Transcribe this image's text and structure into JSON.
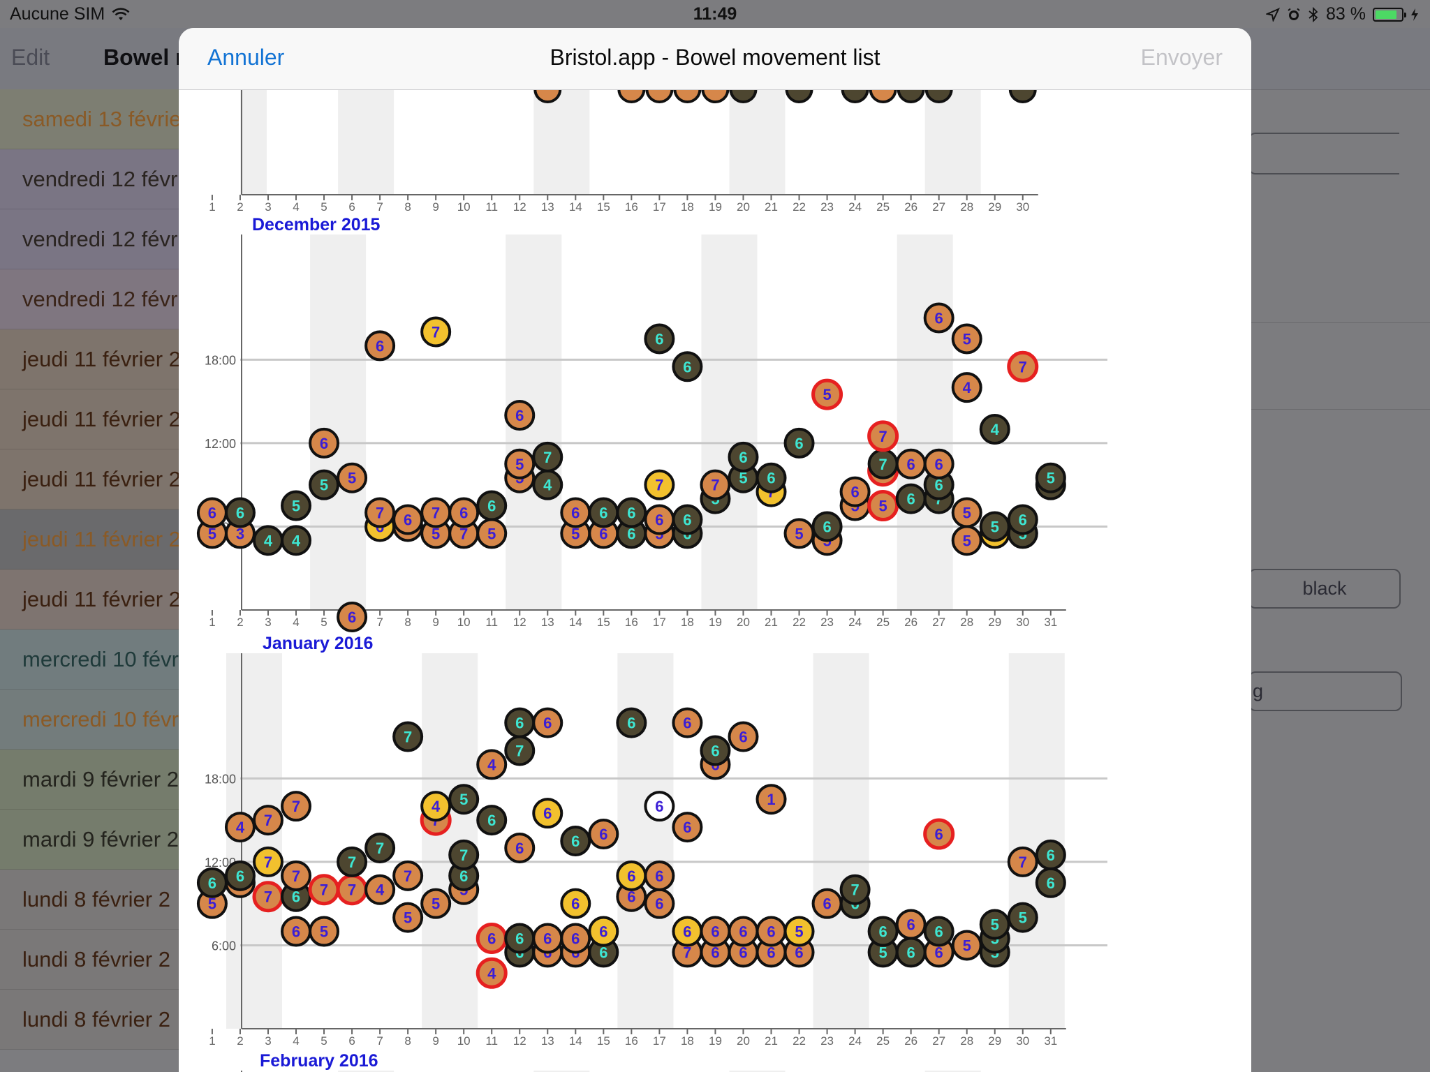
{
  "status_bar": {
    "carrier": "Aucune SIM",
    "time": "11:49",
    "battery": "83 %",
    "battery_level": 0.83
  },
  "background": {
    "nav": {
      "edit_label": "Edit",
      "title": "Bowel r"
    },
    "list": [
      {
        "label": "samedi 13 févrie",
        "color": "#8a5a26",
        "bg": "#7d7e72"
      },
      {
        "label": "vendredi 12 févr",
        "color": "#2a2420",
        "bg": "#7a7584"
      },
      {
        "label": "vendredi 12 févr",
        "color": "#2a2420",
        "bg": "#7a7584"
      },
      {
        "label": "vendredi 12 févr",
        "color": "#3a2418",
        "bg": "#7f7680"
      },
      {
        "label": "jeudi 11 février 2",
        "color": "#3a2010",
        "bg": "#7e746c"
      },
      {
        "label": "jeudi 11 février 2",
        "color": "#3a2010",
        "bg": "#7e746c"
      },
      {
        "label": "jeudi 11 février 2",
        "color": "#3a2010",
        "bg": "#7e746c"
      },
      {
        "label": "jeudi 11 février 2",
        "color": "#8a5a26",
        "bg": "#6a6a6c"
      },
      {
        "label": "jeudi 11 février 2",
        "color": "#3a2010",
        "bg": "#7e7470"
      },
      {
        "label": "mercredi 10 févri",
        "color": "#1f3a3a",
        "bg": "#717c7e"
      },
      {
        "label": "mercredi 10 févri",
        "color": "#8a5a26",
        "bg": "#737c7c"
      },
      {
        "label": "mardi 9 février 2",
        "color": "#24241e",
        "bg": "#757c6c"
      },
      {
        "label": "mardi 9 février 2",
        "color": "#24241e",
        "bg": "#757c6c"
      },
      {
        "label": "lundi 8 février 2",
        "color": "#3a2010",
        "bg": "#7a7878"
      },
      {
        "label": "lundi 8 février 2",
        "color": "#3a2010",
        "bg": "#7a7878"
      },
      {
        "label": "lundi 8 février 2",
        "color": "#3a2010",
        "bg": "#7a7878"
      }
    ],
    "fields": [
      {
        "label": "black"
      },
      {
        "label": "g"
      }
    ]
  },
  "modal": {
    "cancel_label": "Annuler",
    "title": "Bristol.app - Bowel movement list",
    "send_label": "Envoyer",
    "accent_color": "#1273d4"
  },
  "chart_data": [
    {
      "type": "scatter",
      "title": "December 2015",
      "days": 31,
      "y_tick_labels": [
        "6:00",
        "12:00",
        "18:00"
      ],
      "weekend_bands": [
        [
          5,
          6
        ],
        [
          12,
          13
        ],
        [
          19,
          20
        ],
        [
          26,
          27
        ]
      ],
      "points": [
        [
          1,
          5.5,
          "5",
          "or"
        ],
        [
          1,
          7.0,
          "6",
          "or"
        ],
        [
          2,
          5.5,
          "3",
          "or"
        ],
        [
          2,
          7.0,
          "6",
          "gr"
        ],
        [
          3,
          5.0,
          "4",
          "gr"
        ],
        [
          4,
          5.0,
          "4",
          "gr"
        ],
        [
          4,
          7.5,
          "5",
          "gr"
        ],
        [
          5,
          9.0,
          "5",
          "gr"
        ],
        [
          5,
          12.0,
          "6",
          "or"
        ],
        [
          6,
          9.5,
          "5",
          "or"
        ],
        [
          6,
          -0.5,
          "6",
          "or"
        ],
        [
          7,
          6.0,
          "6",
          "ye"
        ],
        [
          7,
          7.0,
          "7",
          "or"
        ],
        [
          7,
          19.0,
          "6",
          "or"
        ],
        [
          8,
          6.0,
          "6",
          "or"
        ],
        [
          8,
          6.5,
          "6",
          "or"
        ],
        [
          9,
          5.5,
          "5",
          "or"
        ],
        [
          9,
          7.0,
          "7",
          "or"
        ],
        [
          9,
          20.0,
          "7",
          "ye"
        ],
        [
          10,
          5.5,
          "7",
          "or"
        ],
        [
          10,
          7.0,
          "6",
          "or"
        ],
        [
          11,
          5.5,
          "5",
          "or"
        ],
        [
          11,
          7.5,
          "6",
          "gr"
        ],
        [
          12,
          9.5,
          "5",
          "or"
        ],
        [
          12,
          10.5,
          "5",
          "or"
        ],
        [
          12,
          14.0,
          "6",
          "or"
        ],
        [
          13,
          9.0,
          "4",
          "gr"
        ],
        [
          13,
          11.0,
          "7",
          "gr"
        ],
        [
          14,
          5.5,
          "5",
          "or"
        ],
        [
          14,
          7.0,
          "6",
          "or"
        ],
        [
          15,
          5.5,
          "6",
          "or"
        ],
        [
          15,
          7.0,
          "6",
          "gr"
        ],
        [
          16,
          5.5,
          "6",
          "gr"
        ],
        [
          16,
          7.0,
          "6",
          "gr"
        ],
        [
          17,
          5.5,
          "5",
          "or"
        ],
        [
          17,
          6.5,
          "6",
          "or"
        ],
        [
          17,
          9.0,
          "7",
          "ye"
        ],
        [
          17,
          19.5,
          "6",
          "gr"
        ],
        [
          18,
          5.5,
          "6",
          "gr"
        ],
        [
          18,
          6.5,
          "6",
          "gr"
        ],
        [
          18,
          17.5,
          "6",
          "gr"
        ],
        [
          19,
          8.0,
          "5",
          "gr"
        ],
        [
          19,
          9.0,
          "7",
          "or"
        ],
        [
          20,
          9.5,
          "5",
          "gr"
        ],
        [
          20,
          11.0,
          "6",
          "gr"
        ],
        [
          21,
          8.5,
          "7",
          "ye"
        ],
        [
          21,
          9.5,
          "6",
          "gr"
        ],
        [
          22,
          5.5,
          "5",
          "or"
        ],
        [
          22,
          12.0,
          "6",
          "gr"
        ],
        [
          23,
          5.0,
          "5",
          "or"
        ],
        [
          23,
          6.0,
          "6",
          "gr"
        ],
        [
          23,
          15.5,
          "5",
          "rd"
        ],
        [
          24,
          7.5,
          "5",
          "or"
        ],
        [
          24,
          8.5,
          "6",
          "or"
        ],
        [
          25,
          7.5,
          "5",
          "rd"
        ],
        [
          25,
          10.0,
          "7",
          "rd"
        ],
        [
          25,
          10.5,
          "7",
          "gr"
        ],
        [
          25,
          12.5,
          "7",
          "rd"
        ],
        [
          26,
          8.0,
          "6",
          "gr"
        ],
        [
          26,
          10.5,
          "6",
          "or"
        ],
        [
          27,
          8.0,
          "7",
          "gr"
        ],
        [
          27,
          9.0,
          "6",
          "gr"
        ],
        [
          27,
          10.5,
          "6",
          "or"
        ],
        [
          27,
          21.0,
          "6",
          "or"
        ],
        [
          28,
          5.0,
          "5",
          "or"
        ],
        [
          28,
          7.0,
          "5",
          "or"
        ],
        [
          28,
          16.0,
          "4",
          "or"
        ],
        [
          28,
          19.5,
          "5",
          "or"
        ],
        [
          29,
          5.5,
          "4",
          "ye"
        ],
        [
          29,
          6.0,
          "5",
          "gr"
        ],
        [
          29,
          13.0,
          "4",
          "gr"
        ],
        [
          30,
          5.5,
          "5",
          "gr"
        ],
        [
          30,
          6.5,
          "6",
          "gr"
        ],
        [
          30,
          17.5,
          "7",
          "rd"
        ],
        [
          31,
          9.0,
          "5",
          "gr"
        ],
        [
          31,
          9.5,
          "5",
          "gr"
        ]
      ]
    },
    {
      "type": "scatter",
      "title": "January 2016",
      "days": 31,
      "y_tick_labels": [
        "6:00",
        "12:00",
        "18:00"
      ],
      "weekend_bands": [
        [
          2,
          3
        ],
        [
          9,
          10
        ],
        [
          16,
          17
        ],
        [
          23,
          24
        ],
        [
          30,
          31
        ]
      ],
      "points": [
        [
          1,
          9.0,
          "5",
          "or"
        ],
        [
          1,
          10.5,
          "6",
          "gr"
        ],
        [
          2,
          10.5,
          "6",
          "or"
        ],
        [
          2,
          11.0,
          "6",
          "gr"
        ],
        [
          2,
          14.5,
          "4",
          "or"
        ],
        [
          3,
          9.5,
          "7",
          "rd"
        ],
        [
          3,
          12.0,
          "7",
          "ye"
        ],
        [
          3,
          15.0,
          "7",
          "or"
        ],
        [
          4,
          7.0,
          "6",
          "or"
        ],
        [
          4,
          9.5,
          "6",
          "gr"
        ],
        [
          4,
          11.0,
          "7",
          "or"
        ],
        [
          4,
          16.0,
          "7",
          "or"
        ],
        [
          5,
          7.0,
          "5",
          "or"
        ],
        [
          5,
          10.0,
          "7",
          "rd"
        ],
        [
          6,
          10.0,
          "7",
          "rd"
        ],
        [
          6,
          12.0,
          "7",
          "gr"
        ],
        [
          7,
          10.0,
          "4",
          "or"
        ],
        [
          7,
          13.0,
          "7",
          "gr"
        ],
        [
          8,
          8.0,
          "5",
          "or"
        ],
        [
          8,
          11.0,
          "7",
          "or"
        ],
        [
          8,
          21.0,
          "7",
          "gr"
        ],
        [
          9,
          9.0,
          "5",
          "or"
        ],
        [
          9,
          15.0,
          "7",
          "rd"
        ],
        [
          9,
          16.0,
          "4",
          "ye"
        ],
        [
          10,
          10.0,
          "5",
          "or"
        ],
        [
          10,
          11.0,
          "6",
          "gr"
        ],
        [
          10,
          12.5,
          "7",
          "gr"
        ],
        [
          10,
          16.5,
          "5",
          "gr"
        ],
        [
          11,
          4.0,
          "4",
          "rd"
        ],
        [
          11,
          6.5,
          "6",
          "rd"
        ],
        [
          11,
          15.0,
          "6",
          "gr"
        ],
        [
          11,
          19.0,
          "4",
          "or"
        ],
        [
          12,
          5.5,
          "6",
          "gr"
        ],
        [
          12,
          6.5,
          "6",
          "gr"
        ],
        [
          12,
          13.0,
          "6",
          "or"
        ],
        [
          12,
          20.0,
          "7",
          "gr"
        ],
        [
          12,
          22.0,
          "6",
          "gr"
        ],
        [
          13,
          5.5,
          "6",
          "or"
        ],
        [
          13,
          6.5,
          "6",
          "or"
        ],
        [
          13,
          15.5,
          "6",
          "ye"
        ],
        [
          13,
          22.0,
          "6",
          "or"
        ],
        [
          14,
          5.5,
          "6",
          "or"
        ],
        [
          14,
          6.5,
          "6",
          "or"
        ],
        [
          14,
          9.0,
          "6",
          "ye"
        ],
        [
          14,
          13.5,
          "6",
          "gr"
        ],
        [
          15,
          5.5,
          "6",
          "gr"
        ],
        [
          15,
          7.0,
          "6",
          "ye"
        ],
        [
          15,
          14.0,
          "6",
          "or"
        ],
        [
          16,
          9.5,
          "6",
          "or"
        ],
        [
          16,
          11.0,
          "6",
          "ye"
        ],
        [
          16,
          22.0,
          "6",
          "gr"
        ],
        [
          17,
          9.0,
          "6",
          "or"
        ],
        [
          17,
          11.0,
          "6",
          "or"
        ],
        [
          17,
          16.0,
          "6",
          "wh"
        ],
        [
          18,
          5.5,
          "7",
          "or"
        ],
        [
          18,
          7.0,
          "6",
          "ye"
        ],
        [
          18,
          14.5,
          "6",
          "or"
        ],
        [
          18,
          22.0,
          "6",
          "or"
        ],
        [
          19,
          5.5,
          "6",
          "or"
        ],
        [
          19,
          7.0,
          "6",
          "or"
        ],
        [
          19,
          19.0,
          "6",
          "or"
        ],
        [
          19,
          20.0,
          "6",
          "gr"
        ],
        [
          20,
          5.5,
          "6",
          "or"
        ],
        [
          20,
          7.0,
          "6",
          "or"
        ],
        [
          20,
          21.0,
          "6",
          "or"
        ],
        [
          21,
          5.5,
          "6",
          "or"
        ],
        [
          21,
          7.0,
          "6",
          "or"
        ],
        [
          21,
          16.5,
          "1",
          "or"
        ],
        [
          22,
          5.5,
          "6",
          "or"
        ],
        [
          22,
          7.0,
          "5",
          "ye"
        ],
        [
          23,
          9.0,
          "6",
          "or"
        ],
        [
          24,
          9.0,
          "6",
          "gr"
        ],
        [
          24,
          10.0,
          "7",
          "gr"
        ],
        [
          25,
          5.5,
          "5",
          "gr"
        ],
        [
          25,
          7.0,
          "6",
          "gr"
        ],
        [
          26,
          5.5,
          "6",
          "gr"
        ],
        [
          26,
          7.5,
          "6",
          "or"
        ],
        [
          27,
          5.5,
          "6",
          "or"
        ],
        [
          27,
          7.0,
          "6",
          "gr"
        ],
        [
          27,
          14.0,
          "6",
          "rd"
        ],
        [
          28,
          6.0,
          "5",
          "or"
        ],
        [
          29,
          5.5,
          "5",
          "gr"
        ],
        [
          29,
          6.5,
          "5",
          "gr"
        ],
        [
          29,
          7.5,
          "5",
          "gr"
        ],
        [
          30,
          8.0,
          "5",
          "gr"
        ],
        [
          30,
          12.0,
          "7",
          "or"
        ],
        [
          31,
          10.5,
          "6",
          "gr"
        ],
        [
          31,
          12.5,
          "6",
          "gr"
        ]
      ]
    },
    {
      "type": "scatter",
      "title": "December 2015",
      "partial": "november_tail",
      "days": 30,
      "points": [
        [
          13,
          23.5,
          "6",
          "or"
        ],
        [
          16,
          23.5,
          "6",
          "or"
        ],
        [
          17,
          23.5,
          "6",
          "or"
        ],
        [
          18,
          23.5,
          "6",
          "or"
        ],
        [
          19,
          23.5,
          "6",
          "or"
        ],
        [
          20,
          23.5,
          "6",
          "gr"
        ],
        [
          22,
          23.5,
          "6",
          "gr"
        ],
        [
          24,
          23.5,
          "6",
          "gr"
        ],
        [
          25,
          23.5,
          "6",
          "or"
        ],
        [
          26,
          23.5,
          "6",
          "gr"
        ],
        [
          27,
          23.5,
          "6",
          "gr"
        ],
        [
          30,
          23.5,
          "6",
          "gr"
        ]
      ]
    },
    {
      "type": "scatter",
      "title": "February 2016",
      "partial": "february_head"
    }
  ]
}
